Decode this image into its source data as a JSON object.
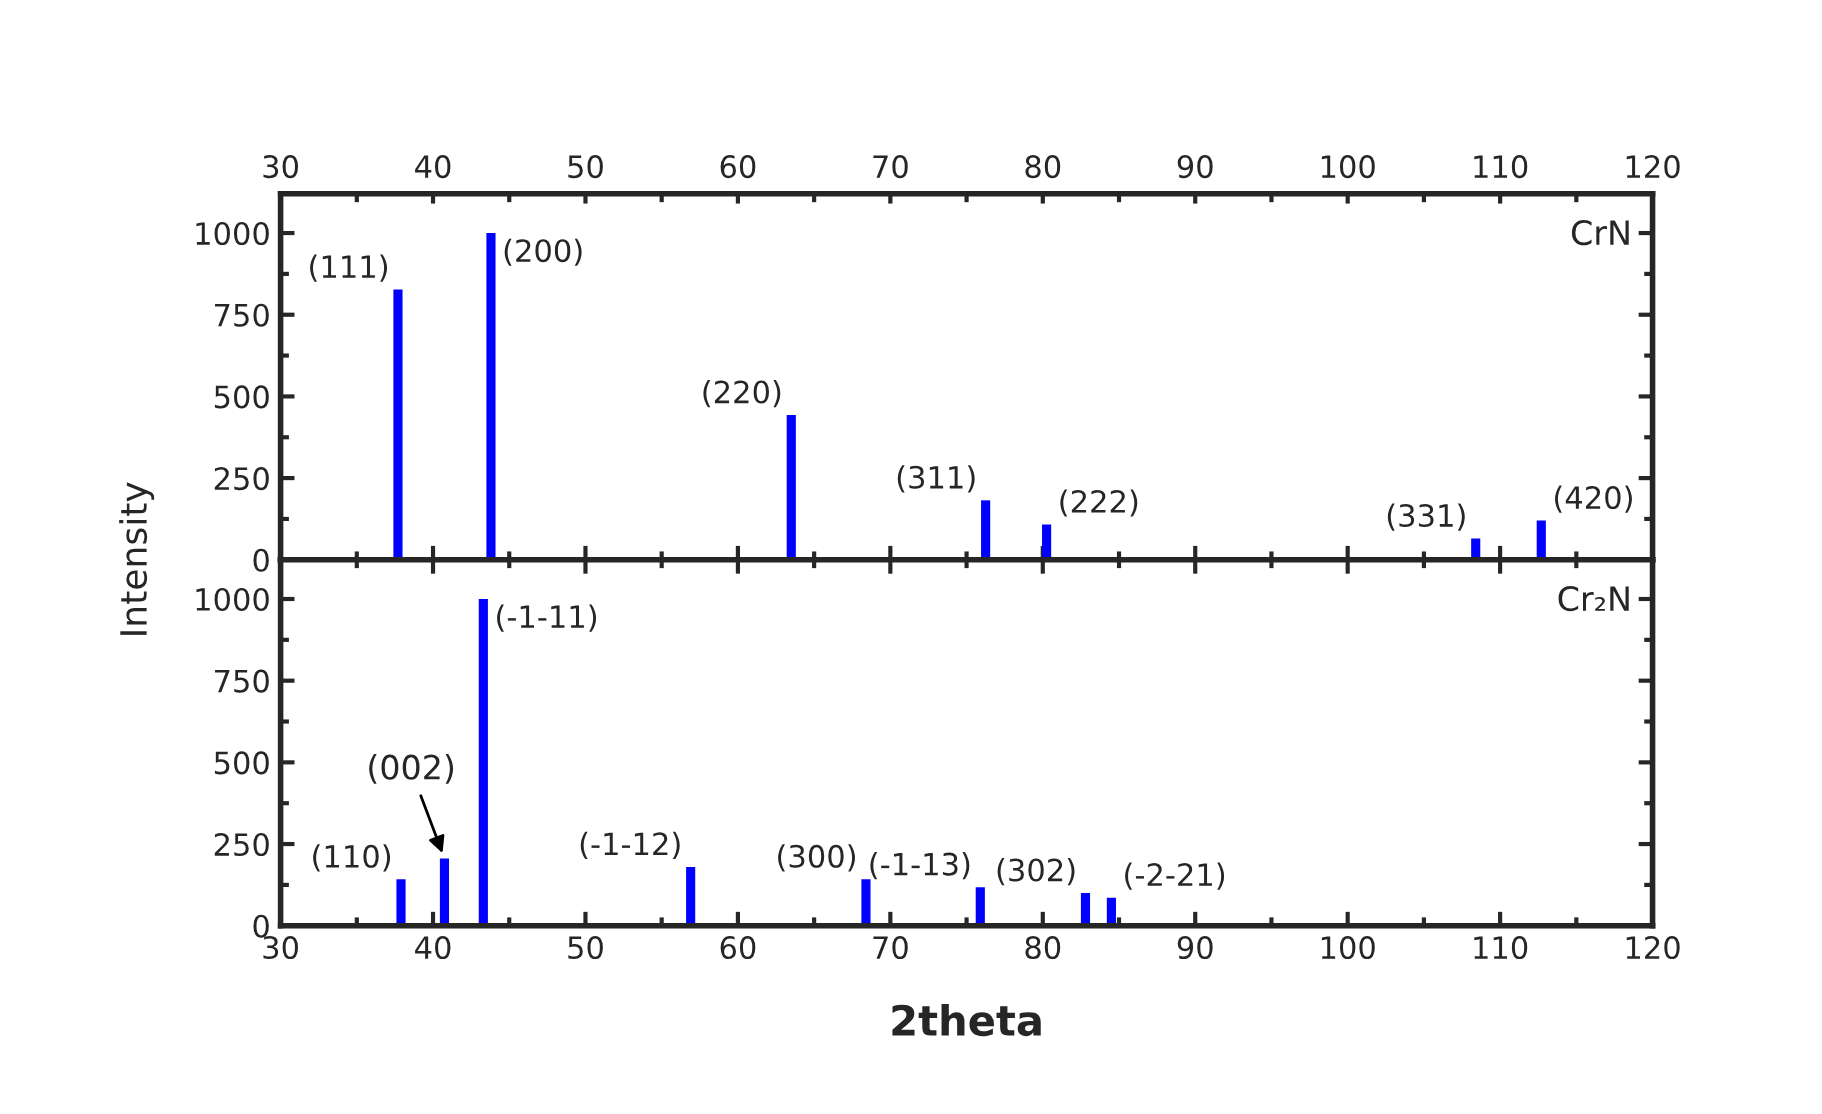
{
  "chart_data": [
    {
      "type": "bar",
      "x": [
        37.7,
        43.8,
        63.5,
        76.25,
        80.25,
        108.4,
        112.7
      ],
      "values": [
        827,
        1000,
        443,
        182,
        108,
        65,
        120
      ],
      "color": "#0000ff",
      "xlim": [
        30,
        120
      ],
      "xticks": [
        30,
        40,
        50,
        60,
        70,
        80,
        90,
        100,
        110,
        120
      ],
      "x2lim": [
        30,
        120
      ],
      "x2ticks": [
        30,
        40,
        50,
        60,
        70,
        80,
        90,
        100,
        110,
        120
      ],
      "ylim": [
        0,
        1120
      ],
      "yticks": [
        0,
        250,
        500,
        750,
        1000
      ],
      "ylabel": "Intensity",
      "tick_labels": "y",
      "grid": false,
      "legend": false,
      "annotations": [
        "CrN",
        {
          "text": "(111)",
          "x": 37.7,
          "y": 827
        },
        {
          "text": "(200)",
          "x": 43.8,
          "y": 1000
        },
        {
          "text": "(220)",
          "x": 63.5,
          "y": 443
        },
        {
          "text": "(311)",
          "x": 76.25,
          "y": 182
        },
        {
          "text": "(222)",
          "x": 80.25,
          "y": 108
        },
        {
          "text": "(331)",
          "x": 108.4,
          "y": 65
        },
        {
          "text": "(420)",
          "x": 112.7,
          "y": 120
        }
      ]
    },
    {
      "type": "bar",
      "x": [
        37.9,
        40.75,
        43.3,
        56.9,
        68.4,
        75.9,
        82.8,
        84.5
      ],
      "values": [
        142,
        206,
        1000,
        180,
        142,
        118,
        100,
        86
      ],
      "color": "#0000ff",
      "xlim": [
        30,
        120
      ],
      "xticks": [
        30,
        40,
        50,
        60,
        70,
        80,
        90,
        100,
        110,
        120
      ],
      "ylim": [
        0,
        1120
      ],
      "yticks": [
        0,
        250,
        500,
        750,
        1000
      ],
      "xlabel": "2theta",
      "grid": false,
      "legend": false,
      "annotations": [
        "Cr₂N",
        {
          "text": "(110)",
          "x": 37.9,
          "y": 142
        },
        {
          "text": "(002)",
          "x": 40.75,
          "y": 206
        },
        {
          "text": "(-1-11)",
          "x": 43.3,
          "y": 1000
        },
        {
          "text": "(-1-12)",
          "x": 56.9,
          "y": 180
        },
        {
          "text": "(300)",
          "x": 68.4,
          "y": 142
        },
        {
          "text": "(-1-13)",
          "x": 75.9,
          "y": 118
        },
        {
          "text": "(302)",
          "x": 82.8,
          "y": 100
        },
        {
          "text": "(-2-21)",
          "x": 84.5,
          "y": 86
        }
      ]
    }
  ]
}
